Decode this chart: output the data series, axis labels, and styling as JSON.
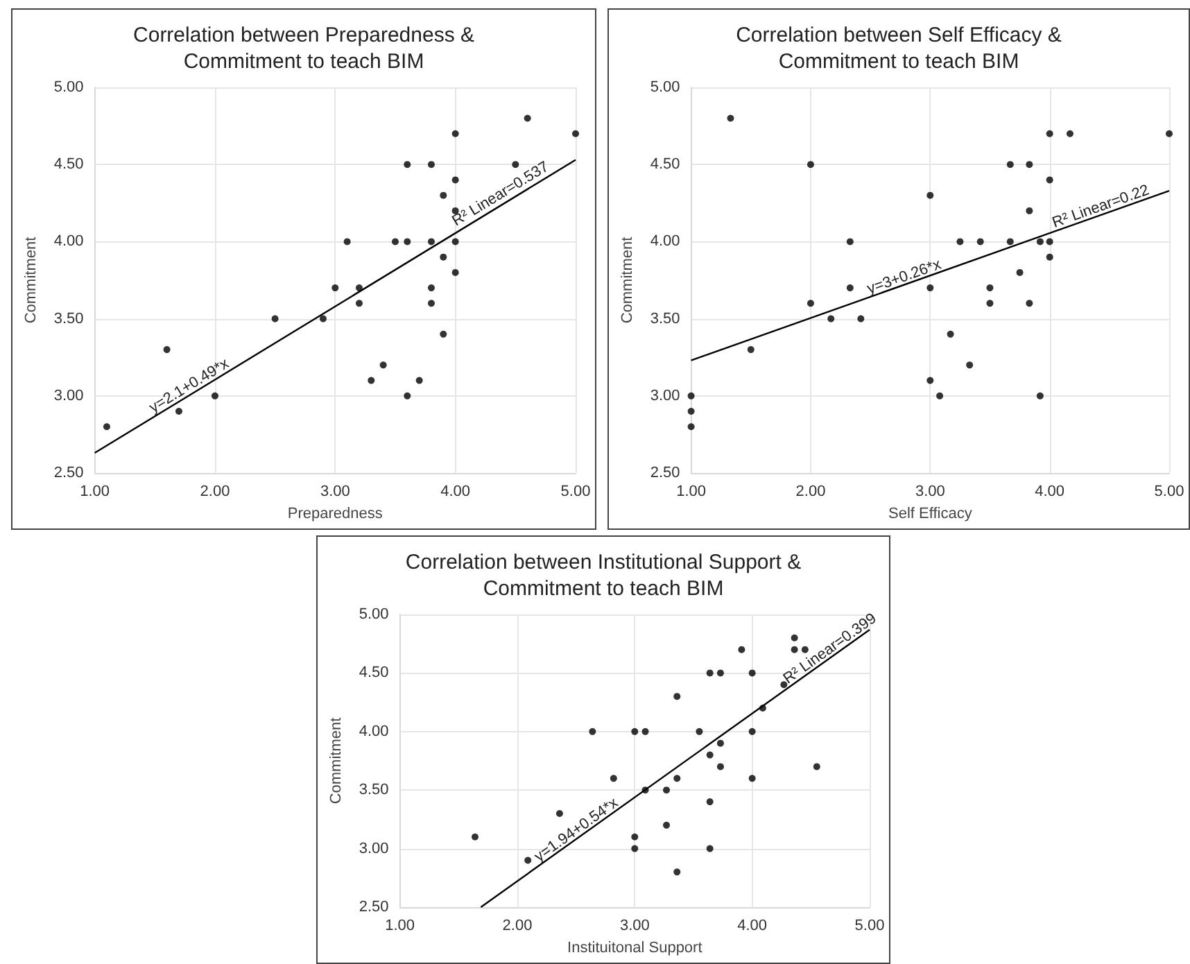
{
  "chart_data": [
    {
      "type": "scatter",
      "title": "Correlation between Preparedness &\nCommitment to teach BIM",
      "xlabel": "Preparedness",
      "ylabel": "Commitment",
      "xlim": [
        1,
        5
      ],
      "xticks": [
        {
          "value": 1,
          "label": "1.00"
        },
        {
          "value": 2,
          "label": "2.00"
        },
        {
          "value": 3,
          "label": "3.00"
        },
        {
          "value": 4,
          "label": "4.00"
        },
        {
          "value": 5,
          "label": "5.00"
        }
      ],
      "ylim": [
        2.5,
        5
      ],
      "yticks": [
        {
          "value": 2.5,
          "label": "2.50"
        },
        {
          "value": 3,
          "label": "3.00"
        },
        {
          "value": 3.5,
          "label": "3.50"
        },
        {
          "value": 4,
          "label": "4.00"
        },
        {
          "value": 4.5,
          "label": "4.50"
        },
        {
          "value": 5,
          "label": "5.00"
        }
      ],
      "grid": true,
      "marker": "circle",
      "series": [
        {
          "color": "#000000",
          "x": [
            1.1,
            1.6,
            1.7,
            2.0,
            2.5,
            2.9,
            3.0,
            3.1,
            3.2,
            3.2,
            3.3,
            3.4,
            3.5,
            3.6,
            3.6,
            3.6,
            3.7,
            3.8,
            3.8,
            3.8,
            3.8,
            3.9,
            3.9,
            3.9,
            4.0,
            4.0,
            4.0,
            4.0,
            4.0,
            4.5,
            4.6,
            5.0
          ],
          "values": [
            2.8,
            3.3,
            2.9,
            3.0,
            3.5,
            3.5,
            3.7,
            4.0,
            3.7,
            3.6,
            3.1,
            3.2,
            4.0,
            4.5,
            4.0,
            3.0,
            3.1,
            4.5,
            4.0,
            3.7,
            3.6,
            4.3,
            3.9,
            3.4,
            4.7,
            4.4,
            4.2,
            4.0,
            3.8,
            4.5,
            4.8,
            4.7
          ]
        },
        {
          "type": "line",
          "marker": "none",
          "color": "#000000",
          "x": [
            1,
            5
          ],
          "values": [
            2.63,
            4.53
          ]
        }
      ],
      "annotations": [
        {
          "text": "y=2.1+0.49*x",
          "x": 1.5,
          "y": 2.87
        },
        {
          "text": "R² Linear=0.537",
          "x": 4.02,
          "y": 4.08
        }
      ]
    },
    {
      "type": "scatter",
      "title": "Correlation between Self Efficacy &\nCommitment to teach BIM",
      "xlabel": "Self Efficacy",
      "ylabel": "Commitment",
      "xlim": [
        1,
        5
      ],
      "xticks": [
        {
          "value": 1,
          "label": "1.00"
        },
        {
          "value": 2,
          "label": "2.00"
        },
        {
          "value": 3,
          "label": "3.00"
        },
        {
          "value": 4,
          "label": "4.00"
        },
        {
          "value": 5,
          "label": "5.00"
        }
      ],
      "ylim": [
        2.5,
        5
      ],
      "yticks": [
        {
          "value": 2.5,
          "label": "2.50"
        },
        {
          "value": 3,
          "label": "3.00"
        },
        {
          "value": 3.5,
          "label": "3.50"
        },
        {
          "value": 4,
          "label": "4.00"
        },
        {
          "value": 4.5,
          "label": "4.50"
        },
        {
          "value": 5,
          "label": "5.00"
        }
      ],
      "grid": true,
      "marker": "circle",
      "series": [
        {
          "color": "#000000",
          "x": [
            1.0,
            1.0,
            1.0,
            1.33,
            1.5,
            2.0,
            2.0,
            2.17,
            2.33,
            2.33,
            2.42,
            3.0,
            3.0,
            3.0,
            3.08,
            3.17,
            3.25,
            3.33,
            3.42,
            3.5,
            3.5,
            3.67,
            3.67,
            3.75,
            3.83,
            3.83,
            3.83,
            3.92,
            3.92,
            4.0,
            4.0,
            4.0,
            4.0,
            4.17,
            5.0
          ],
          "values": [
            3.0,
            2.9,
            2.8,
            4.8,
            3.3,
            4.5,
            3.6,
            3.5,
            4.0,
            3.7,
            3.5,
            4.3,
            3.7,
            3.1,
            3.0,
            3.4,
            4.0,
            3.2,
            4.0,
            3.7,
            3.6,
            4.5,
            4.0,
            3.8,
            4.5,
            4.2,
            3.6,
            4.0,
            3.0,
            4.7,
            4.4,
            4.0,
            3.9,
            4.7,
            4.7
          ]
        },
        {
          "type": "line",
          "marker": "none",
          "color": "#000000",
          "x": [
            1,
            5
          ],
          "values": [
            3.23,
            4.33
          ]
        }
      ],
      "annotations": [
        {
          "text": "y=3+0.26*x",
          "x": 2.5,
          "y": 3.64
        },
        {
          "text": "R² Linear=0.22",
          "x": 4.05,
          "y": 4.07
        }
      ]
    },
    {
      "type": "scatter",
      "title": "Correlation between Institutional Support &\nCommitment to teach BIM",
      "xlabel": "Instituitonal Support",
      "ylabel": "Commitment",
      "xlim": [
        1,
        5
      ],
      "xticks": [
        {
          "value": 1,
          "label": "1.00"
        },
        {
          "value": 2,
          "label": "2.00"
        },
        {
          "value": 3,
          "label": "3.00"
        },
        {
          "value": 4,
          "label": "4.00"
        },
        {
          "value": 5,
          "label": "5.00"
        }
      ],
      "ylim": [
        2.5,
        5
      ],
      "yticks": [
        {
          "value": 2.5,
          "label": "2.50"
        },
        {
          "value": 3,
          "label": "3.00"
        },
        {
          "value": 3.5,
          "label": "3.50"
        },
        {
          "value": 4,
          "label": "4.00"
        },
        {
          "value": 4.5,
          "label": "4.50"
        },
        {
          "value": 5,
          "label": "5.00"
        }
      ],
      "grid": true,
      "marker": "circle",
      "series": [
        {
          "color": "#000000",
          "x": [
            1.64,
            2.09,
            2.36,
            2.64,
            2.82,
            3.0,
            3.0,
            3.0,
            3.09,
            3.09,
            3.27,
            3.27,
            3.36,
            3.36,
            3.36,
            3.55,
            3.64,
            3.64,
            3.64,
            3.64,
            3.73,
            3.73,
            3.73,
            3.91,
            4.0,
            4.0,
            4.0,
            4.09,
            4.27,
            4.36,
            4.36,
            4.45,
            4.55
          ],
          "values": [
            3.1,
            2.9,
            3.3,
            4.0,
            3.6,
            4.0,
            3.1,
            3.0,
            4.0,
            3.5,
            3.5,
            3.2,
            4.3,
            3.6,
            2.8,
            4.0,
            4.5,
            3.8,
            3.4,
            3.0,
            4.5,
            3.9,
            3.7,
            4.7,
            4.5,
            4.0,
            3.6,
            4.2,
            4.4,
            4.8,
            4.7,
            4.7,
            3.7
          ]
        },
        {
          "type": "line",
          "marker": "none",
          "color": "#000000",
          "x": [
            1.69,
            5
          ],
          "values": [
            2.5,
            4.87
          ]
        }
      ],
      "annotations": [
        {
          "text": "y=1.94+0.54*x",
          "x": 2.2,
          "y": 2.86
        },
        {
          "text": "R² Linear=0.399",
          "x": 4.32,
          "y": 4.38
        }
      ]
    }
  ]
}
